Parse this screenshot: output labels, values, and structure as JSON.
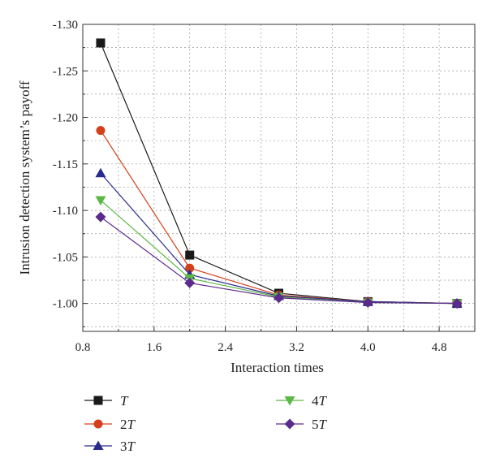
{
  "chart_data": {
    "type": "line",
    "xlabel": "Interaction times",
    "ylabel": "Intrusion detection system’s payoff",
    "xlim": [
      0.8,
      5.2
    ],
    "ylim": [
      -0.97,
      -1.3
    ],
    "y_axis_inverted": true,
    "grid": "dashed",
    "xticks": [
      "0.8",
      "1.6",
      "2.4",
      "3.2",
      "4.0",
      "4.8"
    ],
    "yticks": [
      "-1.30",
      "-1.25",
      "-1.20",
      "-1.15",
      "-1.10",
      "-1.05",
      "-1.00"
    ],
    "x": [
      1,
      2,
      3,
      4,
      5
    ],
    "legend_position": "below",
    "series": [
      {
        "name": "T",
        "prefix": "",
        "var": "T",
        "color": "#1a1a1a",
        "marker": "square",
        "values": [
          -1.28,
          -1.052,
          -1.011,
          -1.002,
          -1.0
        ]
      },
      {
        "name": "2T",
        "prefix": "2",
        "var": "T",
        "color": "#d4401c",
        "marker": "circle",
        "values": [
          -1.186,
          -1.038,
          -1.009,
          -1.002,
          -1.0
        ]
      },
      {
        "name": "3T",
        "prefix": "3",
        "var": "T",
        "color": "#2b2b8c",
        "marker": "triangle-up",
        "values": [
          -1.14,
          -1.031,
          -1.008,
          -1.002,
          -1.0
        ]
      },
      {
        "name": "4T",
        "prefix": "4",
        "var": "T",
        "color": "#5cb844",
        "marker": "triangle-down",
        "values": [
          -1.111,
          -1.027,
          -1.007,
          -1.001,
          -1.0
        ]
      },
      {
        "name": "5T",
        "prefix": "5",
        "var": "T",
        "color": "#5c2a8c",
        "marker": "diamond",
        "values": [
          -1.093,
          -1.022,
          -1.006,
          -1.001,
          -1.0
        ]
      }
    ]
  }
}
